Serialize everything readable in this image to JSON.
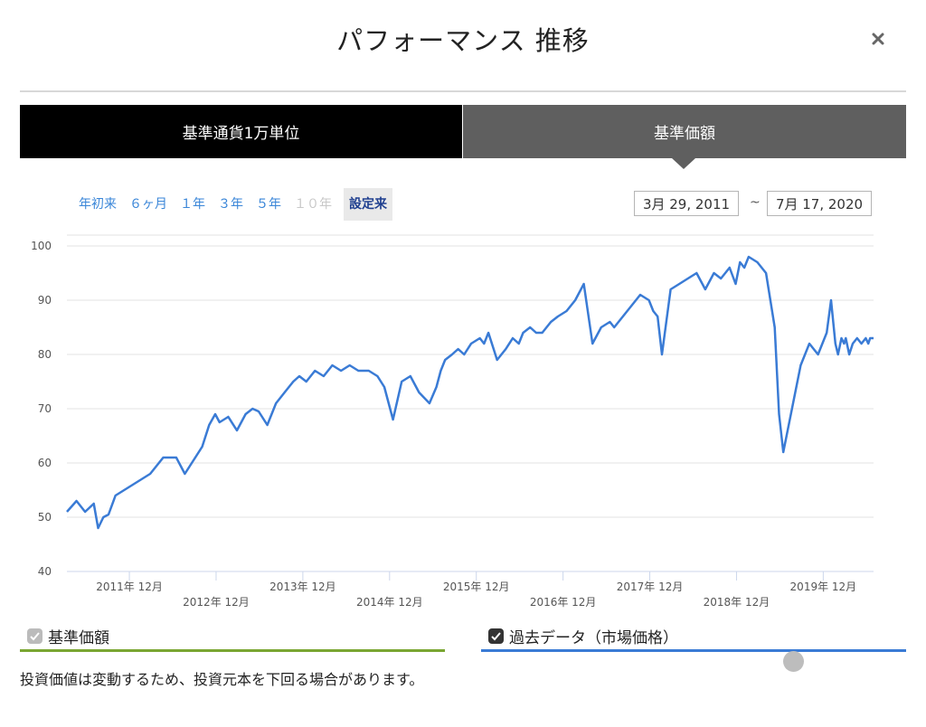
{
  "modal": {
    "title": "パフォーマンス 推移"
  },
  "tabs": {
    "left": "基準通貨1万単位",
    "right": "基準価額"
  },
  "periods": [
    {
      "label": "年初来",
      "state": "normal"
    },
    {
      "label": "６ヶ月",
      "state": "normal"
    },
    {
      "label": "１年",
      "state": "normal"
    },
    {
      "label": "３年",
      "state": "normal"
    },
    {
      "label": "５年",
      "state": "normal"
    },
    {
      "label": "１０年",
      "state": "disabled"
    },
    {
      "label": "設定来",
      "state": "active"
    }
  ],
  "date_range": {
    "from": "3月 29, 2011",
    "separator": "~",
    "to": "7月 17, 2020"
  },
  "legend": {
    "nav_label": "基準価額",
    "nav_checked": true,
    "nav_color": "#7aa632",
    "market_label": "過去データ（市場価格）",
    "market_checked": true,
    "market_color": "#3a7bd5"
  },
  "disclaimer": "投資価値は変動するため、投資元本を下回る場合があります。",
  "chart_data": {
    "type": "line",
    "ylim": [
      40,
      102
    ],
    "yticks": [
      40,
      50,
      60,
      70,
      80,
      90,
      100
    ],
    "xlim": [
      2011.24,
      2020.54
    ],
    "xticks_upper": [
      {
        "x": 2011.96,
        "label": "2011年 12月"
      },
      {
        "x": 2013.96,
        "label": "2013年 12月"
      },
      {
        "x": 2015.96,
        "label": "2015年 12月"
      },
      {
        "x": 2017.96,
        "label": "2017年 12月"
      },
      {
        "x": 2019.96,
        "label": "2019年 12月"
      }
    ],
    "xticks_lower": [
      {
        "x": 2012.96,
        "label": "2012年 12月"
      },
      {
        "x": 2014.96,
        "label": "2014年 12月"
      },
      {
        "x": 2016.96,
        "label": "2016年 12月"
      },
      {
        "x": 2018.96,
        "label": "2018年 12月"
      }
    ],
    "series": [
      {
        "color": "#3a7bd5",
        "x": [
          2011.24,
          2011.35,
          2011.45,
          2011.55,
          2011.6,
          2011.66,
          2011.72,
          2011.8,
          2011.9,
          2012.0,
          2012.1,
          2012.2,
          2012.35,
          2012.5,
          2012.6,
          2012.7,
          2012.8,
          2012.88,
          2012.95,
          2013.0,
          2013.1,
          2013.2,
          2013.3,
          2013.38,
          2013.45,
          2013.55,
          2013.65,
          2013.75,
          2013.85,
          2013.92,
          2014.0,
          2014.1,
          2014.2,
          2014.3,
          2014.4,
          2014.5,
          2014.6,
          2014.72,
          2014.82,
          2014.9,
          2015.0,
          2015.1,
          2015.2,
          2015.3,
          2015.42,
          2015.5,
          2015.55,
          2015.6,
          2015.68,
          2015.75,
          2015.82,
          2015.9,
          2016.0,
          2016.05,
          2016.1,
          2016.2,
          2016.3,
          2016.38,
          2016.45,
          2016.5,
          2016.58,
          2016.65,
          2016.72,
          2016.82,
          2016.9,
          2017.0,
          2017.1,
          2017.2,
          2017.3,
          2017.4,
          2017.5,
          2017.55,
          2017.65,
          2017.75,
          2017.85,
          2017.95,
          2018.0,
          2018.05,
          2018.1,
          2018.2,
          2018.3,
          2018.4,
          2018.5,
          2018.6,
          2018.7,
          2018.78,
          2018.88,
          2018.95,
          2019.0,
          2019.05,
          2019.1,
          2019.2,
          2019.3,
          2019.4,
          2019.45,
          2019.5,
          2019.6,
          2019.7,
          2019.8,
          2019.9,
          2020.0,
          2020.05,
          2020.1,
          2020.13,
          2020.17,
          2020.2,
          2020.22,
          2020.26,
          2020.3,
          2020.35,
          2020.4,
          2020.45,
          2020.48,
          2020.5,
          2020.54
        ],
        "y": [
          51,
          53,
          51,
          52.5,
          48,
          50,
          50.5,
          54,
          55,
          56,
          57,
          58,
          61,
          61,
          58,
          60.5,
          63,
          67,
          69,
          67.5,
          68.5,
          66,
          69,
          70,
          69.5,
          67,
          71,
          73,
          75,
          76,
          75,
          77,
          76,
          78,
          77,
          78,
          77,
          77,
          76,
          74,
          68,
          75,
          76,
          73,
          71,
          74,
          77,
          79,
          80,
          81,
          80,
          82,
          83,
          82,
          84,
          79,
          81,
          83,
          82,
          84,
          85,
          84,
          84,
          86,
          87,
          88,
          90,
          93,
          82,
          85,
          86,
          85,
          87,
          89,
          91,
          90,
          88,
          87,
          80,
          92,
          93,
          94,
          95,
          92,
          95,
          94,
          96,
          93,
          97,
          96,
          98,
          97,
          95,
          85,
          69,
          62,
          70,
          78,
          82,
          80,
          84,
          90,
          82,
          80,
          83,
          82,
          83,
          80,
          82,
          83,
          82,
          83,
          82,
          83,
          83
        ]
      }
    ]
  }
}
